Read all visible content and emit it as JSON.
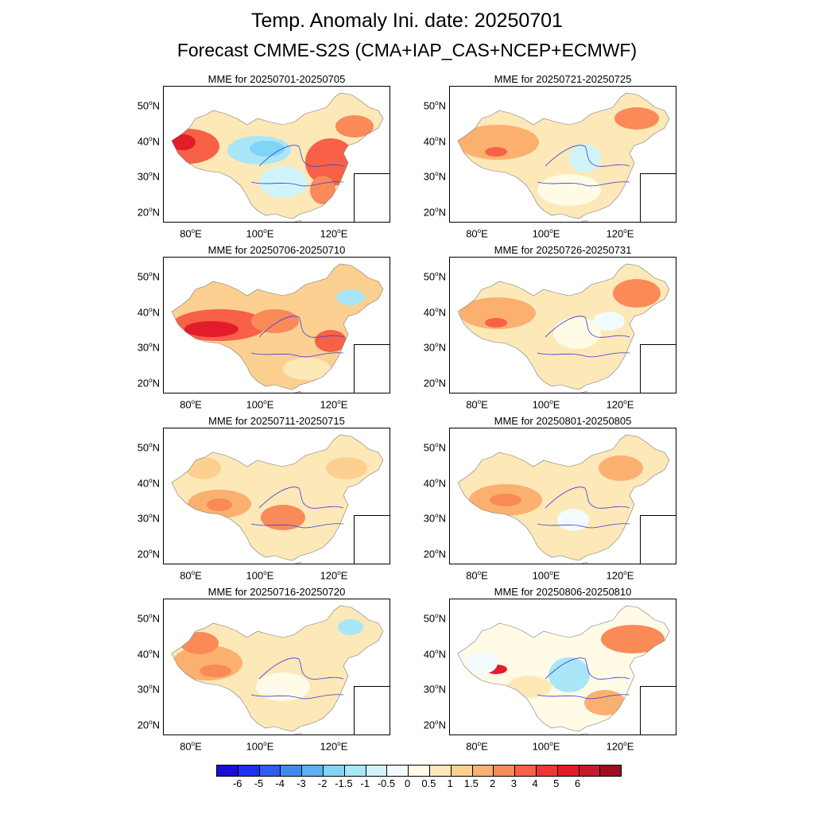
{
  "title": "Temp. Anomaly Ini. date: 20250701",
  "subtitle": "Forecast CMME-S2S (CMA+IAP_CAS+NCEP+ECMWF)",
  "panels": [
    {
      "label": "MME for 20250701-20250705",
      "scheme": "w1"
    },
    {
      "label": "MME for 20250721-20250725",
      "scheme": "w5"
    },
    {
      "label": "MME for 20250706-20250710",
      "scheme": "w2"
    },
    {
      "label": "MME for 20250726-20250731",
      "scheme": "w6"
    },
    {
      "label": "MME for 20250711-20250715",
      "scheme": "w3"
    },
    {
      "label": "MME for 20250801-20250805",
      "scheme": "w7"
    },
    {
      "label": "MME for 20250716-20250720",
      "scheme": "w4"
    },
    {
      "label": "MME for 20250806-20250810",
      "scheme": "w8"
    }
  ],
  "lat_ticks": [
    "50",
    "40",
    "30",
    "20"
  ],
  "lon_ticks": [
    "80",
    "100",
    "120"
  ],
  "lat_suffix": "N",
  "lon_suffix": "E",
  "colorbar": {
    "colors": [
      "#1a0fd6",
      "#1f2ff0",
      "#2e5ef0",
      "#3f8af0",
      "#5db0f5",
      "#80d4f5",
      "#a8e6f8",
      "#d0f4fa",
      "#f2fbfd",
      "#fffbe6",
      "#fde8b8",
      "#fcd090",
      "#fcb070",
      "#fa8a58",
      "#f86048",
      "#f03535",
      "#e21c2a",
      "#c81a2a",
      "#a10d20"
    ],
    "labels": [
      "-6",
      "-5",
      "-4",
      "-3",
      "-2",
      "-1.5",
      "-1",
      "-0.5",
      "0",
      "0.5",
      "1",
      "1.5",
      "2",
      "3",
      "4",
      "5",
      "6"
    ]
  }
}
